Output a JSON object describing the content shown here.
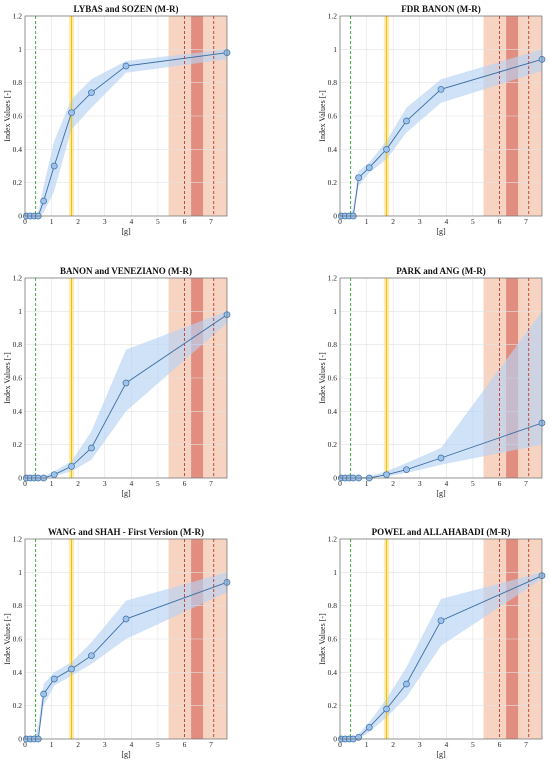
{
  "chart_data": [
    {
      "type": "line",
      "title": "LYBAS and SOZEN (M-R)",
      "xlabel": "[g]",
      "ylabel": "Index Values [-]",
      "xlim": [
        0,
        7.6
      ],
      "ylim": [
        0,
        1.2
      ],
      "xticks": [
        "0",
        "1",
        "2",
        "3",
        "4",
        "5",
        "6",
        "7"
      ],
      "yticks": [
        "0",
        "0.2",
        "0.4",
        "0.6",
        "0.8",
        "1",
        "1.2"
      ],
      "grid": "on",
      "x": [
        0.05,
        0.2,
        0.35,
        0.5,
        0.7,
        1.1,
        1.75,
        2.5,
        3.8,
        7.6
      ],
      "values": [
        0,
        0,
        0,
        0,
        0.09,
        0.3,
        0.62,
        0.74,
        0.9,
        0.98
      ],
      "band_upper": [
        0,
        0,
        0,
        0.02,
        0.18,
        0.45,
        0.7,
        0.82,
        0.93,
        1.0
      ],
      "band_lower": [
        0,
        0,
        0,
        0,
        0.02,
        0.15,
        0.52,
        0.65,
        0.86,
        0.94
      ]
    },
    {
      "type": "line",
      "title": "FDR BANON (M-R)",
      "xlabel": "[g]",
      "ylabel": "Index Values [-]",
      "xlim": [
        0,
        7.6
      ],
      "ylim": [
        0,
        1.2
      ],
      "xticks": [
        "0",
        "1",
        "2",
        "3",
        "4",
        "5",
        "6",
        "7"
      ],
      "yticks": [
        "0",
        "0.2",
        "0.4",
        "0.6",
        "0.8",
        "1",
        "1.2"
      ],
      "grid": "on",
      "x": [
        0.05,
        0.2,
        0.35,
        0.5,
        0.7,
        1.1,
        1.75,
        2.5,
        3.8,
        7.6
      ],
      "values": [
        0,
        0,
        0,
        0,
        0.23,
        0.29,
        0.4,
        0.57,
        0.76,
        0.94
      ],
      "band_upper": [
        0,
        0,
        0,
        0.05,
        0.27,
        0.32,
        0.45,
        0.65,
        0.82,
        1.0
      ],
      "band_lower": [
        0,
        0,
        0,
        0,
        0.18,
        0.26,
        0.34,
        0.5,
        0.68,
        0.87
      ]
    },
    {
      "type": "line",
      "title": "BANON and VENEZIANO (M-R)",
      "xlabel": "[g]",
      "ylabel": "Index Values [-]",
      "xlim": [
        0,
        7.6
      ],
      "ylim": [
        0,
        1.2
      ],
      "xticks": [
        "0",
        "1",
        "2",
        "3",
        "4",
        "5",
        "6",
        "7"
      ],
      "yticks": [
        "0",
        "0.2",
        "0.4",
        "0.6",
        "0.8",
        "1",
        "1.2"
      ],
      "grid": "on",
      "x": [
        0.05,
        0.2,
        0.35,
        0.5,
        0.7,
        1.1,
        1.75,
        2.5,
        3.8,
        7.6
      ],
      "values": [
        0,
        0,
        0,
        0,
        0,
        0.02,
        0.07,
        0.18,
        0.57,
        0.98
      ],
      "band_upper": [
        0,
        0,
        0,
        0,
        0.01,
        0.04,
        0.1,
        0.28,
        0.77,
        1.0
      ],
      "band_lower": [
        0,
        0,
        0,
        0,
        0,
        0.01,
        0.04,
        0.11,
        0.4,
        0.93
      ]
    },
    {
      "type": "line",
      "title": "PARK and ANG (M-R)",
      "xlabel": "[g]",
      "ylabel": "Index Values [-]",
      "xlim": [
        0,
        7.6
      ],
      "ylim": [
        0,
        1.2
      ],
      "xticks": [
        "0",
        "1",
        "2",
        "3",
        "4",
        "5",
        "6",
        "7"
      ],
      "yticks": [
        "0",
        "0.2",
        "0.4",
        "0.6",
        "0.8",
        "1",
        "1.2"
      ],
      "grid": "on",
      "x": [
        0.05,
        0.2,
        0.35,
        0.5,
        0.7,
        1.1,
        1.75,
        2.5,
        3.8,
        7.6
      ],
      "values": [
        0,
        0,
        0,
        0,
        0,
        0,
        0.02,
        0.05,
        0.12,
        0.33
      ],
      "band_upper": [
        0,
        0,
        0,
        0,
        0,
        0.01,
        0.04,
        0.09,
        0.18,
        1.0
      ],
      "band_lower": [
        0,
        0,
        0,
        0,
        0,
        0,
        0.01,
        0.03,
        0.08,
        0.2
      ]
    },
    {
      "type": "line",
      "title": "WANG and SHAH - First Version (M-R)",
      "xlabel": "[g]",
      "ylabel": "Index Values [-]",
      "xlim": [
        0,
        7.6
      ],
      "ylim": [
        0,
        1.2
      ],
      "xticks": [
        "0",
        "1",
        "2",
        "3",
        "4",
        "5",
        "6",
        "7"
      ],
      "yticks": [
        "0",
        "0.2",
        "0.4",
        "0.6",
        "0.8",
        "1",
        "1.2"
      ],
      "grid": "on",
      "x": [
        0.05,
        0.2,
        0.35,
        0.5,
        0.7,
        1.1,
        1.75,
        2.5,
        3.8,
        7.6
      ],
      "values": [
        0,
        0,
        0,
        0,
        0.27,
        0.36,
        0.42,
        0.5,
        0.72,
        0.94
      ],
      "band_upper": [
        0,
        0,
        0,
        0.08,
        0.33,
        0.4,
        0.46,
        0.58,
        0.83,
        1.0
      ],
      "band_lower": [
        0,
        0,
        0,
        0,
        0.2,
        0.32,
        0.38,
        0.45,
        0.6,
        0.88
      ]
    },
    {
      "type": "line",
      "title": "POWEL and ALLAHABADI (M-R)",
      "xlabel": "[g]",
      "ylabel": "Index Values [-]",
      "xlim": [
        0,
        7.6
      ],
      "ylim": [
        0,
        1.2
      ],
      "xticks": [
        "0",
        "1",
        "2",
        "3",
        "4",
        "5",
        "6",
        "7"
      ],
      "yticks": [
        "0",
        "0.2",
        "0.4",
        "0.6",
        "0.8",
        "1",
        "1.2"
      ],
      "grid": "on",
      "x": [
        0.05,
        0.2,
        0.35,
        0.5,
        0.7,
        1.1,
        1.75,
        2.5,
        3.8,
        7.6
      ],
      "values": [
        0,
        0,
        0,
        0,
        0.01,
        0.07,
        0.18,
        0.33,
        0.71,
        0.98
      ],
      "band_upper": [
        0,
        0,
        0,
        0,
        0.03,
        0.1,
        0.24,
        0.43,
        0.84,
        1.0
      ],
      "band_lower": [
        0,
        0,
        0,
        0,
        0,
        0.04,
        0.13,
        0.25,
        0.56,
        0.96
      ]
    }
  ],
  "reference_lines": [
    {
      "x": 0.4,
      "color": "#2ca02c",
      "style": "dashed"
    },
    {
      "x": 1.75,
      "color": "#f2c200",
      "style": "solid",
      "band": [
        1.65,
        1.85
      ]
    },
    {
      "x": 6.0,
      "color": "#c0392b",
      "style": "dashed"
    },
    {
      "x": 7.1,
      "color": "#c0392b",
      "style": "dashed"
    }
  ],
  "shaded_regions": [
    {
      "range": [
        5.4,
        7.6
      ],
      "color": "#f4c6ad"
    },
    {
      "range": [
        6.25,
        6.7
      ],
      "color": "#d9776a"
    }
  ],
  "colors": {
    "line": "#3a6ea5",
    "marker_fill": "#9ec3ea",
    "band": "#b7d3f2",
    "grid": "#e2e2e2"
  }
}
